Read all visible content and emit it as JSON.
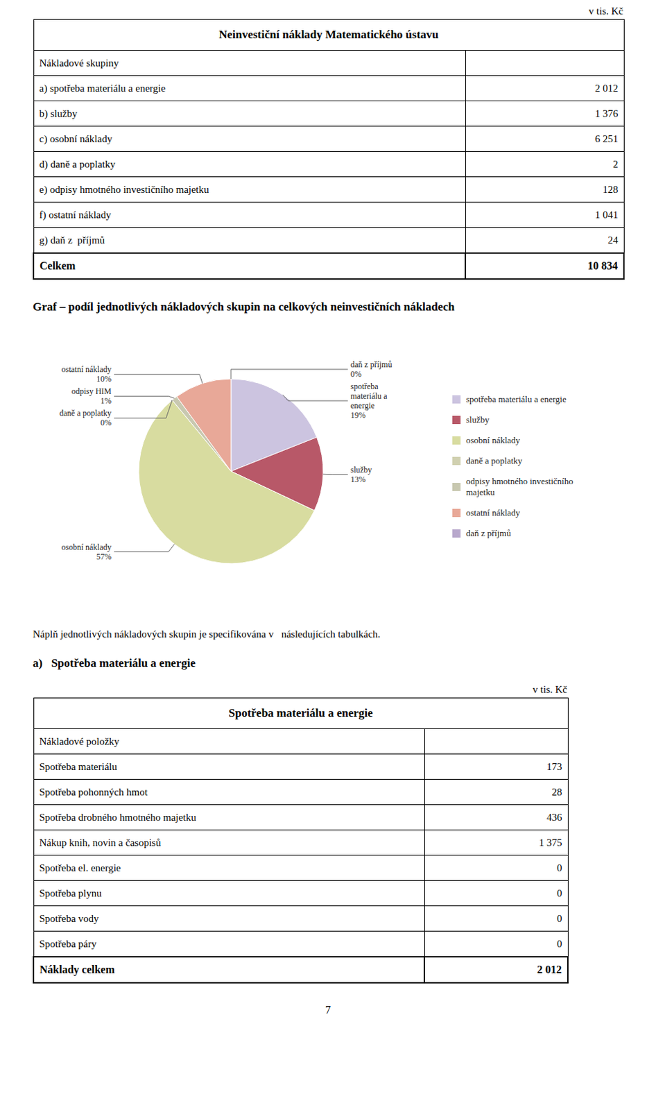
{
  "chart_data": {
    "type": "pie",
    "title": "Graf – podíl jednotlivých nákladových skupin na celkových neinvestičních nákladech",
    "categories": [
      "spotřeba materiálu a energie",
      "služby",
      "osobní náklady",
      "daně a poplatky",
      "odpisy hmotného investičního\nmajetku",
      "ostatní náklady",
      "daň z příjmů"
    ],
    "values": [
      19,
      13,
      57,
      0,
      1,
      10,
      0
    ],
    "value_labels": [
      "spotřeba\nmateriálu a\nenergie\n19%",
      "služby\n13%",
      "osobní náklady\n57%",
      "daně a poplatky\n0%",
      "odpisy HIM\n1%",
      "ostatní náklady\n10%",
      "daň z příjmů\n0%"
    ],
    "colors": [
      "#ccc4e0",
      "#b85868",
      "#d8dca0",
      "#d0d0b0",
      "#c8c8b0",
      "#e8a898",
      "#b8a8cc"
    ],
    "legend": "right",
    "data_labels": true
  },
  "document": {
    "unit": "v tis. Kč",
    "table1": {
      "title": "Neinvestiční náklady Matematického ústavu",
      "header": "Nákladové skupiny",
      "rows": [
        [
          "a) spotřeba materiálu a energie",
          "2 012"
        ],
        [
          "b) služby",
          "1 376"
        ],
        [
          "c) osobní náklady",
          "6 251"
        ],
        [
          "d) daně a poplatky",
          "2"
        ],
        [
          "e) odpisy hmotného investičního majetku",
          "128"
        ],
        [
          "f) ostatní náklady",
          "1 041"
        ],
        [
          "g) daň z  příjmů",
          "24"
        ]
      ],
      "total": [
        "Celkem",
        "10 834"
      ]
    },
    "text_below_graph": "Náplň jednotlivých nákladových skupin je specifikována v   následujících tabulkách.",
    "section_label": "a)   Spotřeba materiálu a energie",
    "table2": {
      "title": "Spotřeba materiálu a energie",
      "header": "Nákladové položky",
      "rows": [
        [
          "Spotřeba materiálu",
          "173"
        ],
        [
          "Spotřeba pohonných hmot",
          "28"
        ],
        [
          "Spotřeba drobného hmotného majetku",
          "436"
        ],
        [
          "Nákup knih, novin a časopisů",
          "1 375"
        ],
        [
          "Spotřeba el. energie",
          "0"
        ],
        [
          "Spotřeba plynu",
          "0"
        ],
        [
          "Spotřeba vody",
          "0"
        ],
        [
          "Spotřeba páry",
          "0"
        ]
      ],
      "total": [
        "Náklady celkem",
        "2 012"
      ]
    },
    "page_number": "7"
  }
}
